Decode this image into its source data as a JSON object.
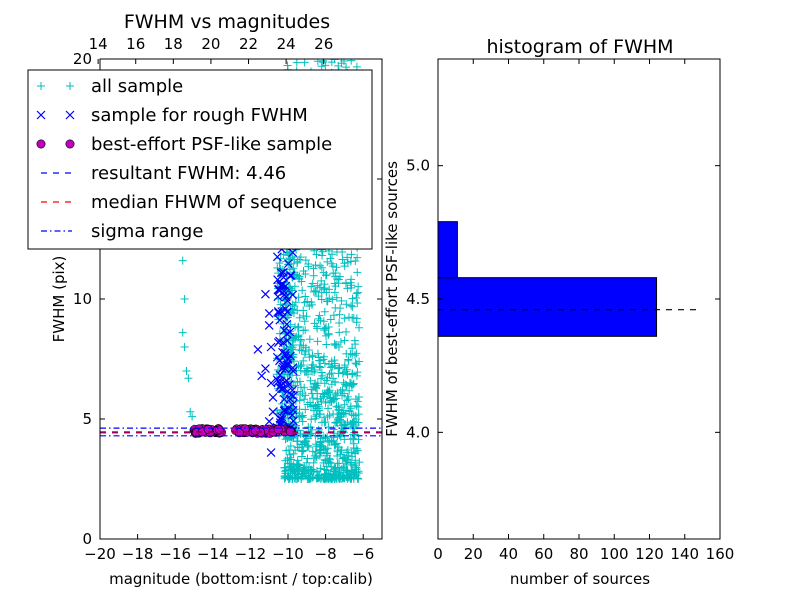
{
  "chart_data": [
    {
      "type": "scatter",
      "title": "FWHM vs magnitudes",
      "xlabel": "magnitude (bottom:isnt / top:calib)",
      "ylabel": "FWHM (pix)",
      "xlim": [
        -20,
        -5
      ],
      "ylim": [
        0,
        20
      ],
      "x_ticks": [
        -20,
        -18,
        -16,
        -14,
        -12,
        -10,
        -8,
        -6
      ],
      "x_tick_labels": [
        "−20",
        "−18",
        "−16",
        "−14",
        "−12",
        "−10",
        "−8",
        "−6"
      ],
      "y_ticks": [
        0,
        5,
        10,
        15,
        20
      ],
      "y_tick_labels": [
        "0",
        "5",
        "10",
        "15",
        "20"
      ],
      "top_axis": {
        "ticks": [
          14,
          16,
          18,
          20,
          22,
          24,
          26
        ],
        "tick_labels": [
          "14",
          "16",
          "18",
          "20",
          "22",
          "24",
          "26"
        ],
        "offset": 34.1
      },
      "legend": {
        "placement": "upper-left",
        "entries": [
          {
            "label": "all sample",
            "marker": "+",
            "color": "#00bfbf"
          },
          {
            "label": "sample for rough FWHM",
            "marker": "x",
            "color": "#0000ff"
          },
          {
            "label": "best-effort PSF-like sample",
            "marker": "o",
            "color": "#bf00bf"
          },
          {
            "label": "resultant FWHM: 4.46",
            "linestyle": "dashed",
            "color": "#0000ff"
          },
          {
            "label": "median FHWM of sequence",
            "linestyle": "dashed",
            "color": "#ff0000"
          },
          {
            "label": "sigma range",
            "linestyle": "dashdot",
            "color": "#0000ff"
          }
        ]
      },
      "series": [
        {
          "name": "all sample",
          "marker": "+",
          "color": "#00bfbf",
          "clusters": [
            {
              "x_range": [
                -10.2,
                -6.2
              ],
              "y_range": [
                2.5,
                20
              ],
              "count": 1200
            },
            {
              "x_range": [
                -10.6,
                -9.7
              ],
              "y_range": [
                4.2,
                16
              ],
              "count": 200
            }
          ],
          "points": [
            {
              "x": -15.6,
              "y": 11.6
            },
            {
              "x": -15.5,
              "y": 10.0
            },
            {
              "x": -15.6,
              "y": 8.6
            },
            {
              "x": -15.5,
              "y": 8.0
            },
            {
              "x": -15.4,
              "y": 7.0
            },
            {
              "x": -15.3,
              "y": 6.7
            },
            {
              "x": -15.2,
              "y": 5.3
            },
            {
              "x": -15.1,
              "y": 5.1
            },
            {
              "x": -15.0,
              "y": 4.6
            }
          ]
        },
        {
          "name": "sample for rough FWHM",
          "marker": "x",
          "color": "#0000ff",
          "clusters": [
            {
              "x_range": [
                -10.6,
                -9.7
              ],
              "y_range": [
                4.5,
                14.5
              ],
              "count": 120
            }
          ],
          "points": [
            {
              "x": -11.2,
              "y": 10.2
            },
            {
              "x": -11.0,
              "y": 9.4
            },
            {
              "x": -11.0,
              "y": 8.9
            },
            {
              "x": -10.9,
              "y": 8.0
            },
            {
              "x": -11.6,
              "y": 7.9
            },
            {
              "x": -11.2,
              "y": 7.1
            },
            {
              "x": -10.9,
              "y": 6.5
            },
            {
              "x": -11.4,
              "y": 6.8
            },
            {
              "x": -10.8,
              "y": 5.3
            },
            {
              "x": -11.0,
              "y": 4.9
            },
            {
              "x": -10.9,
              "y": 3.6
            },
            {
              "x": -10.8,
              "y": 5.9
            }
          ]
        },
        {
          "name": "best-effort PSF-like sample",
          "marker": "o",
          "color": "#bf00bf",
          "clusters": [
            {
              "x_range": [
                -15.0,
                -13.5
              ],
              "y_range": [
                4.4,
                4.6
              ],
              "count": 40
            },
            {
              "x_range": [
                -12.9,
                -9.7
              ],
              "y_range": [
                4.4,
                4.6
              ],
              "count": 60
            }
          ]
        }
      ],
      "hlines": [
        {
          "y": 4.46,
          "color": "#0000ff",
          "linestyle": "dashed"
        },
        {
          "y": 4.42,
          "color": "#ff0000",
          "linestyle": "dashed"
        },
        {
          "y": 4.62,
          "color": "#0000ff",
          "linestyle": "dashdot"
        },
        {
          "y": 4.3,
          "color": "#0000ff",
          "linestyle": "dashdot"
        }
      ]
    },
    {
      "type": "bar",
      "orientation": "horizontal",
      "title": "histogram of FWHM",
      "xlabel": "number of sources",
      "ylabel": "FWHM of best-effort PSF-like sources",
      "xlim": [
        0,
        160
      ],
      "ylim": [
        3.6,
        5.4
      ],
      "x_ticks": [
        0,
        20,
        40,
        60,
        80,
        100,
        120,
        140,
        160
      ],
      "x_tick_labels": [
        "0",
        "20",
        "40",
        "60",
        "80",
        "100",
        "120",
        "140",
        "160"
      ],
      "y_ticks": [
        4.0,
        4.5,
        5.0
      ],
      "y_tick_labels": [
        "4.0",
        "4.5",
        "5.0"
      ],
      "bar_color": "#0000ff",
      "bars": [
        {
          "y0": 4.36,
          "y1": 4.58,
          "value": 124
        },
        {
          "y0": 4.58,
          "y1": 4.79,
          "value": 11
        }
      ],
      "hline": {
        "y": 4.46,
        "x_range": [
          0,
          147
        ],
        "color": "#000000",
        "linestyle": "dashed"
      }
    }
  ]
}
